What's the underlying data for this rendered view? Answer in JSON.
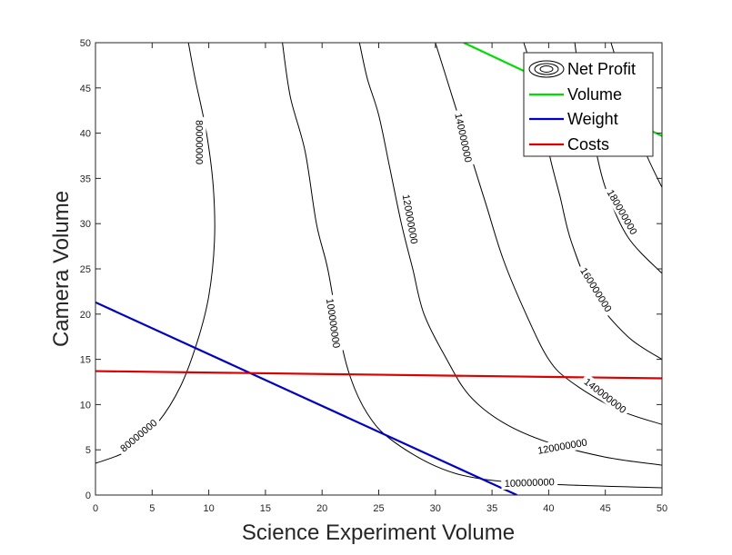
{
  "chart_data": {
    "type": "line",
    "xlabel": "Science Experiment Volume",
    "ylabel": "Camera Volume",
    "xlim": [
      0,
      50
    ],
    "ylim": [
      0,
      50
    ],
    "xticks": [
      "0",
      "5",
      "10",
      "15",
      "20",
      "25",
      "30",
      "35",
      "40",
      "45",
      "50"
    ],
    "yticks": [
      "0",
      "5",
      "10",
      "15",
      "20",
      "25",
      "30",
      "35",
      "40",
      "45",
      "50"
    ],
    "grid": false,
    "legend_position": "top-right",
    "legend": [
      {
        "label": "Net Profit",
        "color": "#000000",
        "symbol": "contour"
      },
      {
        "label": "Volume",
        "color": "#00dd00",
        "symbol": "line"
      },
      {
        "label": "Weight",
        "color": "#0000cc",
        "symbol": "line"
      },
      {
        "label": "Costs",
        "color": "#dd0000",
        "symbol": "line"
      }
    ],
    "constraint_lines": [
      {
        "name": "Volume",
        "color": "#00dd00",
        "points": [
          [
            32.5,
            50
          ],
          [
            50,
            39.7
          ]
        ]
      },
      {
        "name": "Weight",
        "color": "#0000cc",
        "points": [
          [
            0,
            21.3
          ],
          [
            37.2,
            0
          ]
        ]
      },
      {
        "name": "Costs",
        "color": "#dd0000",
        "points": [
          [
            0,
            13.7
          ],
          [
            50,
            12.9
          ]
        ]
      }
    ],
    "contours": [
      {
        "level": 80000000,
        "points": [
          [
            0,
            3.5
          ],
          [
            3,
            5
          ],
          [
            5.5,
            8
          ],
          [
            7.5,
            12
          ],
          [
            9,
            17
          ],
          [
            10,
            22
          ],
          [
            10.5,
            28
          ],
          [
            10.4,
            34
          ],
          [
            9.8,
            40
          ],
          [
            8.8,
            46
          ],
          [
            8.2,
            50
          ]
        ]
      },
      {
        "level": 100000000,
        "points": [
          [
            50,
            0.8
          ],
          [
            40,
            1.2
          ],
          [
            34,
            1.8
          ],
          [
            30,
            3.2
          ],
          [
            26,
            6.2
          ],
          [
            24,
            9
          ],
          [
            22.5,
            13
          ],
          [
            21.5,
            18
          ],
          [
            20.5,
            25
          ],
          [
            19.5,
            30
          ],
          [
            18.5,
            38
          ],
          [
            17.2,
            44
          ],
          [
            16.5,
            50
          ]
        ]
      },
      {
        "level": 120000000,
        "points": [
          [
            50,
            3.3
          ],
          [
            45,
            4.2
          ],
          [
            40,
            5.8
          ],
          [
            36,
            8
          ],
          [
            33,
            11
          ],
          [
            31,
            15
          ],
          [
            29,
            20
          ],
          [
            28,
            25
          ],
          [
            27,
            30
          ],
          [
            26,
            36
          ],
          [
            25,
            42
          ],
          [
            24,
            46
          ],
          [
            23.3,
            50
          ]
        ]
      },
      {
        "level": 140000000,
        "points": [
          [
            50,
            7.8
          ],
          [
            46,
            9.5
          ],
          [
            42,
            12.5
          ],
          [
            40,
            15
          ],
          [
            38,
            20
          ],
          [
            36,
            26
          ],
          [
            34.5,
            32
          ],
          [
            33,
            38
          ],
          [
            31.5,
            44
          ],
          [
            30,
            50
          ]
        ]
      },
      {
        "level": 160000000,
        "points": [
          [
            50,
            15
          ],
          [
            47,
            17.5
          ],
          [
            44,
            22
          ],
          [
            42,
            28
          ],
          [
            41,
            33
          ],
          [
            40,
            38
          ],
          [
            39,
            45
          ],
          [
            37.8,
            50
          ]
        ]
      },
      {
        "level": 180000000,
        "points": [
          [
            50,
            24.5
          ],
          [
            47,
            28.5
          ],
          [
            45,
            34
          ],
          [
            44,
            39
          ],
          [
            43,
            44
          ],
          [
            42.3,
            50
          ]
        ]
      },
      {
        "level": 200000000,
        "points": [
          [
            50,
            34
          ],
          [
            48.5,
            38
          ],
          [
            47.5,
            42
          ],
          [
            46.5,
            46
          ],
          [
            45.5,
            50
          ]
        ]
      }
    ],
    "contour_labels": [
      {
        "text": "80000000",
        "x": 9.2,
        "y": 39,
        "angle": 90
      },
      {
        "text": "80000000",
        "x": 3.8,
        "y": 6.6,
        "angle": -40
      },
      {
        "text": "100000000",
        "x": 21.0,
        "y": 19,
        "angle": 82
      },
      {
        "text": "100000000",
        "x": 38.3,
        "y": 1.4,
        "angle": -2
      },
      {
        "text": "120000000",
        "x": 27.8,
        "y": 30.5,
        "angle": 80
      },
      {
        "text": "120000000",
        "x": 41.2,
        "y": 5.4,
        "angle": -10
      },
      {
        "text": "140000000",
        "x": 32.5,
        "y": 39.5,
        "angle": 78
      },
      {
        "text": "140000000",
        "x": 45.0,
        "y": 11,
        "angle": 38
      },
      {
        "text": "160000000",
        "x": 44.2,
        "y": 22.7,
        "angle": 58
      },
      {
        "text": "180000000",
        "x": 46.5,
        "y": 31.3,
        "angle": 60
      }
    ]
  }
}
